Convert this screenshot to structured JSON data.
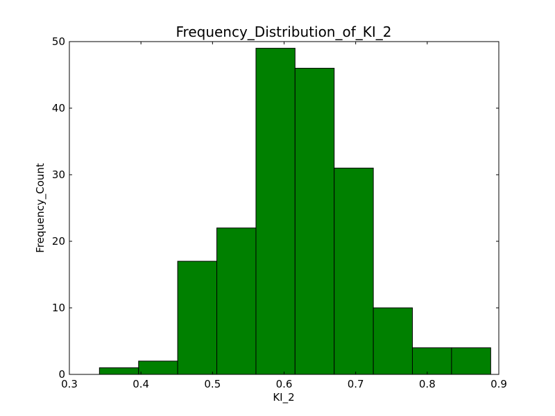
{
  "chart_data": {
    "type": "bar",
    "title": "Frequency_Distribution_of_KI_2",
    "xlabel": "KI_2",
    "ylabel": "Frequency_Count",
    "xlim": [
      0.3,
      0.9
    ],
    "ylim": [
      0,
      50
    ],
    "xticks": [
      0.3,
      0.4,
      0.5,
      0.6,
      0.7,
      0.8,
      0.9
    ],
    "xtick_labels": [
      "0.3",
      "0.4",
      "0.5",
      "0.6",
      "0.7",
      "0.8",
      "0.9"
    ],
    "yticks": [
      0,
      10,
      20,
      30,
      40,
      50
    ],
    "ytick_labels": [
      "0",
      "10",
      "20",
      "30",
      "40",
      "50"
    ],
    "bin_edges": [
      0.342,
      0.3967,
      0.4513,
      0.506,
      0.5607,
      0.6153,
      0.67,
      0.7247,
      0.7793,
      0.834,
      0.8887
    ],
    "counts": [
      1,
      2,
      17,
      22,
      49,
      46,
      31,
      10,
      4,
      4
    ],
    "bar_color": "#008000",
    "edge_color": "#000000",
    "grid": false,
    "legend": "none"
  }
}
